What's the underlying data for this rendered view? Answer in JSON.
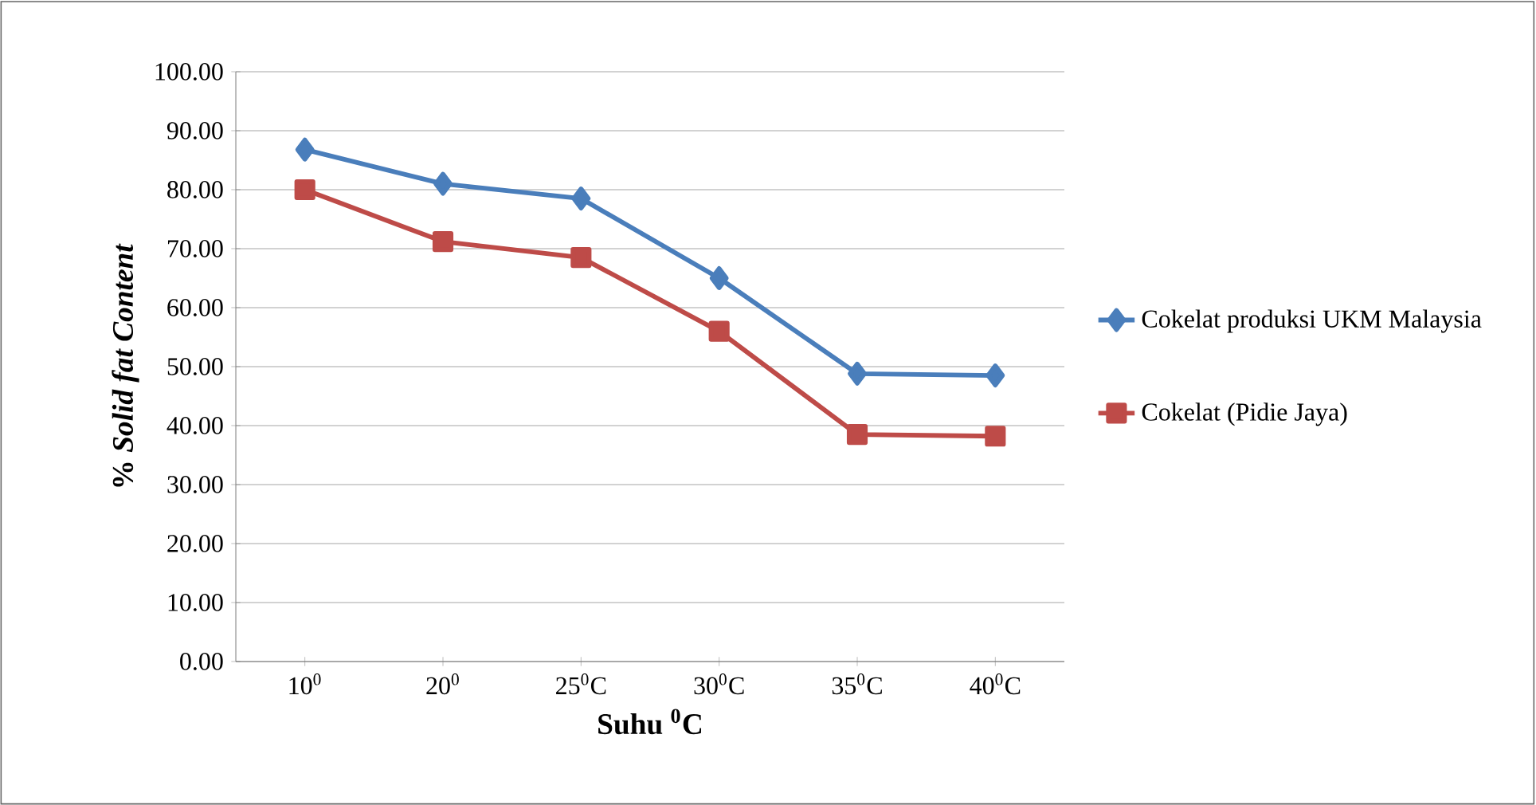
{
  "chart_data": {
    "type": "line",
    "xlabel": "Suhu $^{0}$C",
    "ylabel": "% *Solid fat Content*",
    "categories": [
      "10$^{0}$",
      "20$^{0}$",
      "25$^{0}$C",
      "30$^{0}$C",
      "35$^{0}$C",
      "40$^{0}$C"
    ],
    "series": [
      {
        "name": "Cokelat produksi UKM Malaysia",
        "color": "#4a7ebb",
        "marker": "diamond",
        "values": [
          86.8,
          81.0,
          78.5,
          65.0,
          48.8,
          48.5
        ]
      },
      {
        "name": "Cokelat (Pidie Jaya)",
        "color": "#be4b48",
        "marker": "square",
        "values": [
          80.0,
          71.2,
          68.5,
          56.0,
          38.5,
          38.2
        ]
      }
    ],
    "ylim": [
      0,
      100
    ],
    "yticks": [
      {
        "value": 0,
        "label": "0.00"
      },
      {
        "value": 10,
        "label": "10.00"
      },
      {
        "value": 20,
        "label": "20.00"
      },
      {
        "value": 30,
        "label": "30.00"
      },
      {
        "value": 40,
        "label": "40.00"
      },
      {
        "value": 50,
        "label": "50.00"
      },
      {
        "value": 60,
        "label": "60.00"
      },
      {
        "value": 70,
        "label": "70.00"
      },
      {
        "value": 80,
        "label": "80.00"
      },
      {
        "value": 90,
        "label": "90.00"
      },
      {
        "value": 100,
        "label": "100.00"
      }
    ],
    "grid": "y",
    "legend": "right"
  }
}
